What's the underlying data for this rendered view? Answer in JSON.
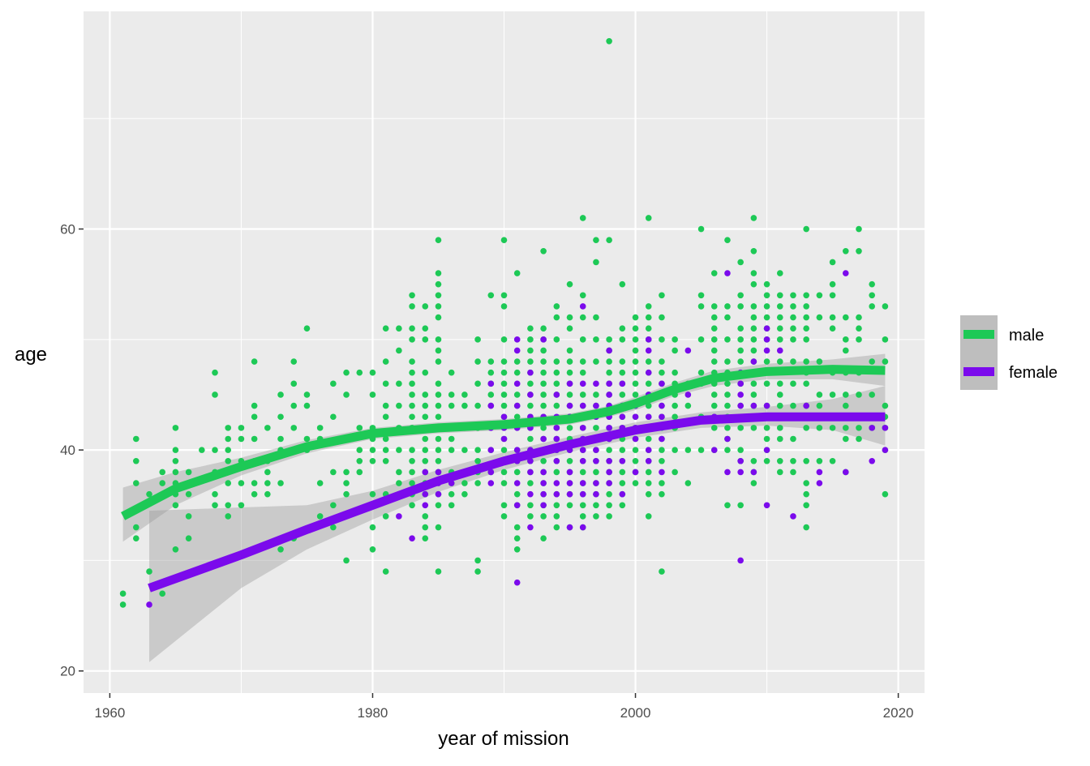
{
  "chart_data": {
    "type": "scatter",
    "xlabel": "year of mission",
    "ylabel": "age",
    "xlim": [
      1958,
      2022
    ],
    "ylim": [
      18,
      79.7
    ],
    "x_ticks": [
      1960,
      1980,
      2000,
      2020
    ],
    "y_ticks": [
      20,
      40,
      60
    ],
    "grid": true,
    "legend_placement": "right",
    "series": [
      {
        "name": "male",
        "color": "#1DC956",
        "points_by_year": {
          "1961": [
            26,
            27
          ],
          "1962": [
            32,
            33,
            37,
            39,
            41
          ],
          "1963": [
            29,
            36
          ],
          "1964": [
            27,
            37,
            38
          ],
          "1965": [
            31,
            35,
            36,
            37,
            38,
            39,
            40,
            42
          ],
          "1966": [
            32,
            34,
            36,
            37,
            38
          ],
          "1967": [
            40
          ],
          "1968": [
            35,
            36,
            38,
            40,
            45,
            47
          ],
          "1969": [
            34,
            35,
            37,
            39,
            40,
            41,
            42
          ],
          "1970": [
            35,
            37,
            39,
            41,
            42
          ],
          "1971": [
            36,
            37,
            39,
            41,
            43,
            44,
            48
          ],
          "1972": [
            36,
            37,
            38,
            39,
            42
          ],
          "1973": [
            31,
            37,
            40,
            41,
            43,
            45
          ],
          "1974": [
            32,
            40,
            42,
            44,
            46,
            48
          ],
          "1975": [
            40,
            41,
            44,
            45,
            51
          ],
          "1976": [
            34,
            37,
            41,
            42
          ],
          "1977": [
            33,
            35,
            38,
            43,
            46
          ],
          "1978": [
            30,
            36,
            37,
            38,
            45,
            47
          ],
          "1979": [
            38,
            39,
            40,
            42,
            47
          ],
          "1980": [
            31,
            33,
            36,
            39,
            40,
            41,
            42,
            45,
            47
          ],
          "1981": [
            29,
            34,
            36,
            39,
            40,
            41,
            43,
            44,
            46,
            48,
            51
          ],
          "1982": [
            36,
            37,
            38,
            40,
            42,
            44,
            46,
            49,
            51
          ],
          "1983": [
            35,
            36,
            37,
            38,
            39,
            40,
            42,
            43,
            44,
            45,
            46,
            47,
            48,
            50,
            51,
            53,
            54
          ],
          "1984": [
            32,
            33,
            34,
            36,
            37,
            38,
            39,
            40,
            41,
            42,
            43,
            44,
            45,
            47,
            50,
            51,
            53
          ],
          "1985": [
            29,
            33,
            35,
            36,
            38,
            39,
            40,
            41,
            42,
            43,
            44,
            45,
            46,
            48,
            49,
            50,
            52,
            53,
            54,
            55,
            56,
            59
          ],
          "1986": [
            35,
            36,
            37,
            38,
            40,
            41,
            42,
            44,
            45,
            47
          ],
          "1987": [
            36,
            37,
            38,
            40,
            42,
            44,
            45
          ],
          "1988": [
            29,
            30,
            37,
            38,
            39,
            40,
            42,
            44,
            46,
            48,
            50
          ],
          "1989": [
            38,
            40,
            42,
            44,
            45,
            46,
            47,
            48,
            54
          ],
          "1990": [
            34,
            35,
            37,
            38,
            39,
            40,
            41,
            42,
            43,
            44,
            45,
            46,
            47,
            48,
            50,
            53,
            54,
            59
          ],
          "1991": [
            31,
            32,
            33,
            35,
            36,
            38,
            39,
            40,
            42,
            43,
            44,
            45,
            47,
            48,
            56
          ],
          "1992": [
            34,
            35,
            37,
            38,
            39,
            40,
            41,
            42,
            43,
            44,
            45,
            46,
            47,
            48,
            49,
            50,
            51
          ],
          "1993": [
            32,
            34,
            35,
            36,
            37,
            38,
            39,
            40,
            41,
            42,
            43,
            44,
            45,
            46,
            47,
            48,
            49,
            50,
            51,
            58
          ],
          "1994": [
            33,
            34,
            35,
            36,
            38,
            39,
            40,
            41,
            42,
            44,
            45,
            46,
            47,
            48,
            50,
            52,
            53
          ],
          "1995": [
            33,
            35,
            36,
            37,
            38,
            39,
            40,
            41,
            42,
            43,
            44,
            45,
            46,
            47,
            48,
            49,
            51,
            52,
            55
          ],
          "1996": [
            33,
            34,
            35,
            36,
            37,
            38,
            39,
            40,
            41,
            42,
            43,
            44,
            45,
            47,
            48,
            50,
            52,
            54,
            61
          ],
          "1997": [
            34,
            35,
            36,
            37,
            38,
            39,
            40,
            41,
            42,
            43,
            44,
            45,
            48,
            50,
            52,
            57,
            59
          ],
          "1998": [
            34,
            35,
            36,
            37,
            38,
            39,
            40,
            41,
            42,
            43,
            44,
            45,
            46,
            47,
            48,
            49,
            50,
            59,
            77
          ],
          "1999": [
            35,
            36,
            37,
            38,
            39,
            40,
            41,
            42,
            43,
            44,
            45,
            46,
            47,
            48,
            50,
            51,
            55
          ],
          "2000": [
            37,
            38,
            39,
            40,
            41,
            42,
            43,
            44,
            45,
            46,
            47,
            48,
            49,
            50,
            51,
            52
          ],
          "2001": [
            34,
            36,
            37,
            38,
            39,
            40,
            41,
            42,
            43,
            44,
            45,
            46,
            47,
            48,
            50,
            51,
            52,
            53,
            61
          ],
          "2002": [
            29,
            36,
            37,
            39,
            40,
            41,
            42,
            43,
            44,
            45,
            46,
            47,
            48,
            50,
            52,
            54
          ],
          "2003": [
            38,
            40,
            42,
            43,
            44,
            45,
            46,
            47,
            49,
            50
          ],
          "2004": [
            37,
            40,
            44,
            46
          ],
          "2005": [
            40,
            43,
            46,
            47,
            50,
            53,
            54,
            60
          ],
          "2006": [
            40,
            42,
            43,
            44,
            45,
            46,
            47,
            48,
            49,
            50,
            51,
            52,
            53,
            56
          ],
          "2007": [
            35,
            40,
            41,
            42,
            43,
            44,
            45,
            46,
            47,
            48,
            50,
            52,
            53,
            59
          ],
          "2008": [
            35,
            39,
            40,
            42,
            43,
            44,
            46,
            47,
            48,
            49,
            50,
            51,
            53,
            54,
            57
          ],
          "2009": [
            37,
            38,
            39,
            42,
            44,
            45,
            46,
            47,
            48,
            49,
            50,
            51,
            52,
            53,
            55,
            56,
            58,
            61
          ],
          "2010": [
            39,
            40,
            41,
            42,
            44,
            46,
            47,
            48,
            50,
            51,
            52,
            53,
            54,
            55
          ],
          "2011": [
            38,
            39,
            41,
            42,
            44,
            45,
            46,
            48,
            50,
            51,
            52,
            53,
            54,
            56
          ],
          "2012": [
            38,
            39,
            41,
            44,
            46,
            48,
            50,
            51,
            52,
            53,
            54
          ],
          "2013": [
            33,
            35,
            36,
            37,
            39,
            42,
            44,
            46,
            47,
            48,
            50,
            51,
            52,
            53,
            54,
            60
          ],
          "2014": [
            39,
            42,
            44,
            45,
            48,
            52,
            54
          ],
          "2015": [
            39,
            42,
            45,
            47,
            51,
            52,
            54,
            55,
            57
          ],
          "2016": [
            38,
            41,
            42,
            44,
            45,
            47,
            49,
            50,
            52,
            58
          ],
          "2017": [
            41,
            42,
            45,
            47,
            50,
            51,
            52,
            58,
            60
          ],
          "2018": [
            42,
            45,
            48,
            53,
            54,
            55
          ],
          "2019": [
            36,
            40,
            42,
            43,
            44,
            48,
            50,
            53
          ]
        },
        "smooth": {
          "x": [
            1961,
            1965,
            1970,
            1975,
            1980,
            1985,
            1990,
            1995,
            1998,
            2000,
            2003,
            2006,
            2010,
            2015,
            2019
          ],
          "y": [
            34,
            36.5,
            38.5,
            40.3,
            41.5,
            42,
            42.3,
            42.8,
            43.5,
            44.2,
            45.5,
            46.5,
            47.1,
            47.3,
            47.2
          ],
          "lower": [
            31.7,
            35,
            37.7,
            39.7,
            41,
            41.5,
            41.8,
            42.3,
            43,
            43.6,
            44.9,
            45.8,
            46.4,
            46.4,
            45.8
          ],
          "upper": [
            36.6,
            38,
            39.3,
            40.9,
            42,
            42.5,
            42.8,
            43.3,
            44,
            44.8,
            46.1,
            47.2,
            47.8,
            48.2,
            48.7
          ]
        }
      },
      {
        "name": "female",
        "color": "#7B0AEC",
        "points_by_year": {
          "1963": [
            26
          ],
          "1982": [
            34
          ],
          "1983": [
            32
          ],
          "1984": [
            35,
            36,
            38
          ],
          "1985": [
            36,
            37,
            38
          ],
          "1986": [
            37
          ],
          "1989": [
            37,
            38,
            40,
            42,
            44,
            46
          ],
          "1990": [
            39,
            41,
            42,
            43
          ],
          "1991": [
            28,
            35,
            37,
            39,
            40,
            42,
            44,
            46,
            49,
            50
          ],
          "1992": [
            33,
            36,
            38,
            39,
            40,
            42,
            43,
            45,
            47
          ],
          "1993": [
            35,
            36,
            37,
            38,
            40,
            41,
            43,
            50
          ],
          "1994": [
            36,
            37,
            39,
            40,
            41,
            42,
            43,
            45
          ],
          "1995": [
            33,
            36,
            37,
            38,
            40,
            43,
            44,
            46
          ],
          "1996": [
            33,
            36,
            37,
            39,
            40,
            41,
            42,
            44,
            46,
            53
          ],
          "1997": [
            36,
            37,
            39,
            40,
            41,
            43,
            44,
            46
          ],
          "1998": [
            37,
            38,
            39,
            41,
            42,
            43,
            44,
            45,
            46,
            49
          ],
          "1999": [
            36,
            39,
            42,
            43,
            44,
            46
          ],
          "2000": [
            38,
            41,
            42,
            43,
            44
          ],
          "2001": [
            39,
            40,
            43,
            45,
            47,
            49,
            50
          ],
          "2002": [
            38,
            41,
            43,
            44,
            46
          ],
          "2004": [
            45,
            49
          ],
          "2006": [
            40,
            43
          ],
          "2007": [
            38,
            41,
            56
          ],
          "2008": [
            30,
            38,
            39,
            44,
            45,
            46,
            47
          ],
          "2009": [
            38,
            44,
            47,
            48
          ],
          "2010": [
            35,
            40,
            44,
            47,
            49,
            50,
            51
          ],
          "2011": [
            49
          ],
          "2012": [
            34
          ],
          "2013": [
            44
          ],
          "2014": [
            37,
            38
          ],
          "2016": [
            38,
            56
          ],
          "2018": [
            39,
            42
          ],
          "2019": [
            40,
            42
          ]
        },
        "smooth": {
          "x": [
            1963,
            1970,
            1975,
            1980,
            1985,
            1990,
            1995,
            2000,
            2005,
            2010,
            2015,
            2019
          ],
          "y": [
            27.5,
            30.5,
            32.8,
            35,
            37.2,
            39,
            40.5,
            41.8,
            42.7,
            43,
            43,
            43
          ],
          "lower": [
            20.8,
            27.5,
            31,
            33.7,
            36.2,
            38.2,
            39.8,
            41.1,
            42,
            42.2,
            41.8,
            40.4
          ],
          "upper": [
            34.5,
            34.8,
            35,
            36.3,
            38.2,
            39.8,
            41.2,
            42.5,
            43.4,
            43.9,
            44.6,
            45.8
          ]
        }
      }
    ]
  }
}
